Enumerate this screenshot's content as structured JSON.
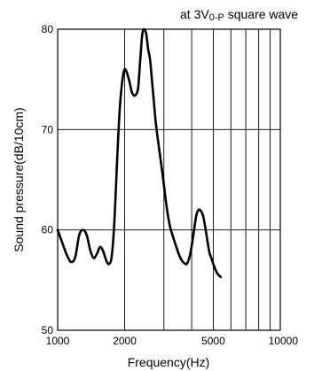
{
  "chart_data": {
    "type": "line",
    "annotation": {
      "prefix": "at 3V",
      "subscript": "0-P",
      "suffix": " square wave"
    },
    "xlabel": "Frequency(Hz)",
    "ylabel": "Sound pressure(dB/10cm)",
    "x_scale": "log",
    "xlim": [
      1000,
      10000
    ],
    "ylim": [
      50,
      80
    ],
    "x_ticks": [
      {
        "value": 1000,
        "label": "1000"
      },
      {
        "value": 2000,
        "label": "2000"
      },
      {
        "value": 5000,
        "label": "5000"
      },
      {
        "value": 10000,
        "label": "10000"
      }
    ],
    "y_ticks": [
      {
        "value": 50,
        "label": "50"
      },
      {
        "value": 60,
        "label": "60"
      },
      {
        "value": 70,
        "label": "70"
      },
      {
        "value": 80,
        "label": "80"
      }
    ],
    "vertical_gridlines": [
      2000,
      3000,
      4000,
      5000,
      6000,
      7000,
      8000,
      9000
    ],
    "horizontal_gridlines": [
      60,
      70
    ],
    "grid": true,
    "series": [
      {
        "x": [
          1000,
          1050,
          1100,
          1150,
          1200,
          1250,
          1300,
          1350,
          1400,
          1450,
          1500,
          1550,
          1600,
          1650,
          1700,
          1750,
          1800,
          1850,
          1900,
          1950,
          2000,
          2050,
          2100,
          2150,
          2200,
          2250,
          2300,
          2350,
          2400,
          2450,
          2500,
          2550,
          2600,
          2650,
          2700,
          2750,
          2800,
          2900,
          3000,
          3100,
          3200,
          3300,
          3400,
          3500,
          3600,
          3700,
          3800,
          3900,
          4000,
          4100,
          4200,
          4300,
          4400,
          4500,
          4600,
          4700,
          4800,
          4900,
          5000,
          5200,
          5400
        ],
        "y": [
          60.0,
          58.7,
          57.5,
          56.8,
          57.3,
          59.5,
          60.0,
          59.5,
          58.0,
          57.2,
          57.6,
          58.3,
          57.9,
          57.0,
          56.6,
          57.4,
          61.0,
          67.0,
          72.0,
          74.8,
          76.0,
          75.6,
          74.8,
          73.8,
          73.4,
          73.5,
          74.2,
          77.0,
          79.5,
          80.0,
          79.5,
          78.0,
          77.0,
          75.0,
          73.0,
          71.0,
          69.5,
          67.0,
          64.5,
          62.0,
          60.3,
          59.3,
          58.4,
          57.6,
          57.0,
          56.7,
          56.6,
          57.2,
          58.4,
          60.0,
          61.5,
          62.0,
          61.9,
          61.4,
          60.3,
          59.0,
          57.8,
          57.2,
          56.6,
          55.7,
          55.3
        ]
      }
    ]
  }
}
